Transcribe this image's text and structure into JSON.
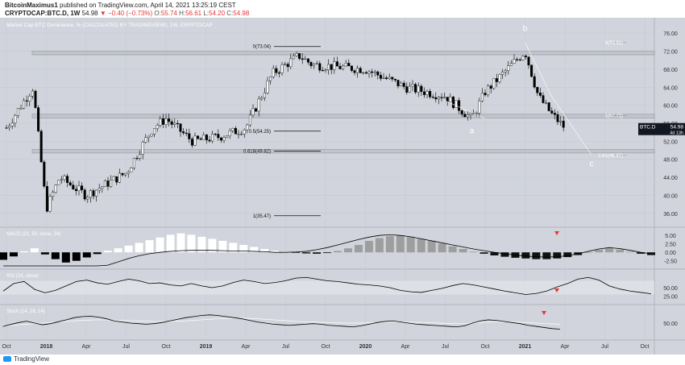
{
  "header": {
    "author": "BitcoinMaximus1",
    "published_text": "published on TradingView.com, April 14, 2021 13:25:19 CEST",
    "symbol": "CRYPTOCAP:BTC.D, 1W",
    "last": "54.98",
    "change": "▼ −0.40 (−0.73%)",
    "open_label": "O:",
    "open": "55.74",
    "high_label": "H:",
    "high": "56.61",
    "low_label": "L:",
    "low": "54.20",
    "close_label": "C:",
    "close": "54.98"
  },
  "footer": {
    "logo_text": "TradingView"
  },
  "colors": {
    "background": "#d1d4dc",
    "panel_band": "#e3e5ea",
    "candle_up": "#ffffff",
    "candle_down": "#000000",
    "price_label_bg": "#131722",
    "signal_red": "#e53935",
    "macd_light": "#ffffff",
    "macd_gray": "#9e9e9e"
  },
  "chart_data": {
    "type": "line",
    "title": "Market Cap BTC Dominance, % (CALCULATED BY TRADINGVIEW), 1W, CRYPTOCAP",
    "series": [
      {
        "name": "BTC.D",
        "x": [
          "Oct 2017",
          "Dec 2017",
          "Jan 2018",
          "Feb 2018",
          "Apr 2018",
          "Jul 2018",
          "Sep 2018",
          "Oct 2018",
          "Dec 2018",
          "Feb 2019",
          "Apr 2019",
          "Jun 2019",
          "Aug 2019",
          "Sep 2019",
          "Jan 2020",
          "Apr 2020",
          "Jul 2020",
          "Sep 2020",
          "Oct 2020",
          "Jan 2021",
          "Feb 2021",
          "Mar 2021",
          "Apr 2021"
        ],
        "values": [
          55,
          64,
          37,
          44,
          40,
          45,
          55,
          57,
          52,
          53,
          55,
          67,
          71,
          69,
          68,
          64,
          62,
          57,
          63,
          72,
          62,
          58,
          54.98
        ]
      }
    ],
    "x_ticks": [
      "Oct",
      "2018",
      "Apr",
      "Jul",
      "Oct",
      "2019",
      "Apr",
      "Jul",
      "Oct",
      "2020",
      "Apr",
      "Jul",
      "Oct",
      "2021",
      "Apr",
      "Jul",
      "Oct"
    ],
    "y_ticks": [
      "76.00",
      "72.00",
      "68.00",
      "64.00",
      "60.00",
      "56.00",
      "52.00",
      "48.00",
      "44.00",
      "40.00",
      "36.00"
    ],
    "ylim": [
      34,
      78
    ],
    "fib_levels": [
      {
        "label": "0(73.04)",
        "value": 73.04
      },
      {
        "label": "0.5(54.25)",
        "value": 54.25
      },
      {
        "label": "0.618(49.82)",
        "value": 49.82
      },
      {
        "label": "1(35.47)",
        "value": 35.47
      }
    ],
    "ext_levels": [
      {
        "label": "0(73.91)",
        "value": 73.91
      },
      {
        "label": "1(57.71)",
        "value": 57.71
      },
      {
        "label": "1.61(48.87)",
        "value": 48.87
      }
    ],
    "support_boxes": [
      {
        "low": 71.2,
        "high": 72.0
      },
      {
        "low": 57.2,
        "high": 58.0
      },
      {
        "low": 49.4,
        "high": 50.2
      }
    ],
    "wave_labels": [
      {
        "text": "b",
        "x": "Jan 2021",
        "y": 76.5
      },
      {
        "text": "a",
        "x": "Sep 2020",
        "y": 53.8
      },
      {
        "text": "c",
        "x": "Jun 2021",
        "y": 46.4
      }
    ],
    "price_tag": {
      "symbol": "BTC.D",
      "value": "54.98",
      "countdown": "4d 13h"
    },
    "macd": {
      "title": "MACD (21, 50, close, 24)",
      "y_ticks": [
        "5.00",
        "2.50",
        "0.00",
        "-2.50"
      ],
      "ylim": [
        -4,
        6
      ],
      "histogram": [
        -2.2,
        -1.2,
        0.3,
        1.2,
        -0.6,
        -2.0,
        -3.0,
        -2.5,
        -1.5,
        -0.5,
        0.5,
        1.2,
        2.0,
        2.8,
        3.6,
        4.4,
        5.2,
        5.6,
        5.2,
        4.6,
        4.0,
        3.4,
        2.8,
        2.2,
        1.6,
        1.0,
        0.5,
        0.2,
        -0.1,
        -0.3,
        -0.4,
        -0.2,
        0.4,
        1.2,
        2.2,
        3.4,
        4.2,
        4.8,
        5.0,
        4.6,
        4.0,
        3.4,
        2.6,
        1.8,
        1.0,
        0.2,
        -0.4,
        -0.9,
        -1.3,
        -1.6,
        -1.8,
        -2.0,
        -2.0,
        -1.8,
        -1.4,
        -0.8,
        0.0,
        0.8,
        1.2,
        0.8,
        0.2,
        -0.4,
        -0.8
      ],
      "macd_line": [
        -4,
        -4,
        -4,
        -4,
        -4,
        -4,
        -4,
        -4,
        -4,
        -4,
        -3.8,
        -2.8,
        -1.8,
        -1.0,
        -0.4,
        0.0,
        0.3,
        0.5,
        0.6,
        0.6,
        0.6,
        0.5,
        0.4,
        0.4,
        0.3,
        0.2,
        0.0,
        0.0,
        0.1,
        0.3,
        0.8,
        1.4,
        2.2,
        3.0,
        3.8,
        4.5,
        5.0,
        5.2,
        5.0,
        4.6,
        4.0,
        3.4,
        2.8,
        2.2,
        1.6,
        1.0,
        0.5,
        0.0,
        -0.4,
        -0.8,
        -1.1,
        -1.3,
        -1.4,
        -1.3,
        -1.0,
        -0.4,
        0.3,
        1.0,
        1.4,
        1.1,
        0.6,
        0.0,
        -0.4
      ]
    },
    "rsi": {
      "title": "RSI (14, close)",
      "y_ticks": [
        "50.00",
        "25.00"
      ],
      "ylim": [
        10,
        90
      ],
      "band": [
        30,
        70
      ],
      "values": [
        40,
        62,
        68,
        45,
        35,
        42,
        55,
        68,
        72,
        64,
        60,
        68,
        75,
        70,
        62,
        64,
        58,
        55,
        62,
        55,
        50,
        55,
        65,
        72,
        68,
        62,
        65,
        70,
        78,
        80,
        75,
        70,
        68,
        64,
        60,
        58,
        55,
        50,
        42,
        38,
        36,
        42,
        48,
        56,
        62,
        58,
        52,
        46,
        40,
        35,
        30,
        33,
        40,
        52,
        62,
        75,
        80,
        72,
        55,
        46,
        40,
        36,
        32
      ]
    },
    "stoch": {
      "title": "Stoch (14, 28, 14)",
      "y_ticks": [
        "50.00"
      ],
      "ylim": [
        0,
        100
      ],
      "k": [
        38,
        45,
        52,
        57,
        50,
        44,
        48,
        55,
        62,
        70,
        74,
        75,
        72,
        66,
        58,
        54,
        50,
        48,
        46,
        48,
        52,
        58,
        64,
        70,
        74,
        78,
        80,
        78,
        74,
        70,
        66,
        60,
        54,
        50,
        46,
        44,
        42,
        44,
        46,
        48,
        46,
        42,
        40,
        38,
        36,
        40,
        46,
        52,
        56,
        58,
        54,
        50,
        46,
        44,
        42,
        40,
        38,
        36,
        40,
        50,
        58,
        62,
        60,
        56,
        52,
        48,
        42,
        38,
        34,
        30,
        28
      ],
      "d": [
        40,
        42,
        44,
        46,
        48,
        50,
        52,
        54,
        56,
        58,
        60,
        61,
        62,
        62,
        61,
        60,
        59,
        58,
        57,
        56,
        56,
        56,
        57,
        58,
        60,
        62,
        64,
        66,
        67,
        68,
        68,
        67,
        66,
        64,
        62,
        60,
        58,
        56,
        55,
        54,
        53,
        52,
        51,
        50,
        50,
        50,
        51,
        52,
        53,
        54,
        54,
        54,
        53,
        52,
        51,
        50,
        49,
        48,
        48,
        50,
        52,
        54,
        55,
        55,
        54,
        53,
        52,
        50,
        48,
        47,
        46
      ]
    }
  }
}
